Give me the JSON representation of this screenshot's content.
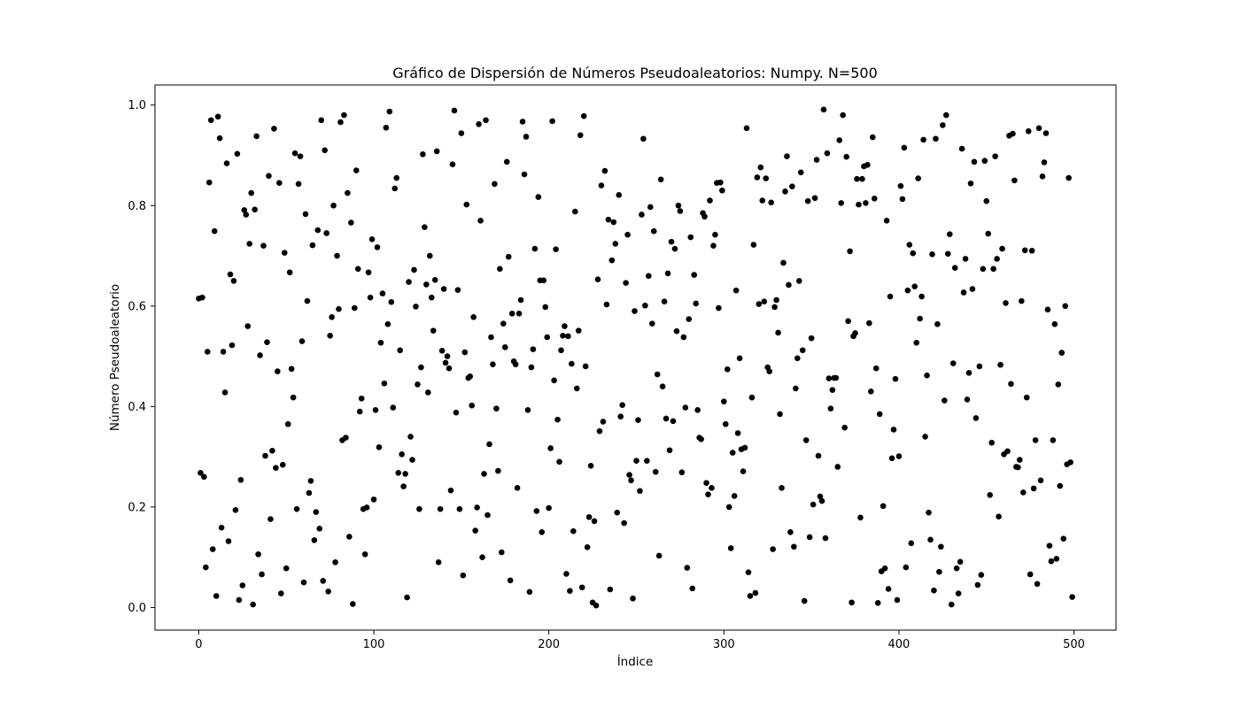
{
  "chart_data": {
    "type": "scatter",
    "title": "Gráfico de Dispersión de Números Pseudoaleatorios: Numpy. N=500",
    "xlabel": "Índice",
    "ylabel": "Número Pseudoaleatorio",
    "xlim": [
      -25,
      524
    ],
    "ylim": [
      -0.045,
      1.04
    ],
    "xticks": [
      0,
      100,
      200,
      300,
      400,
      500
    ],
    "yticks": [
      0.0,
      0.2,
      0.4,
      0.6,
      0.8,
      1.0
    ],
    "xtick_labels": [
      "0",
      "100",
      "200",
      "300",
      "400",
      "500"
    ],
    "ytick_labels": [
      "0.0",
      "0.2",
      "0.4",
      "0.6",
      "0.8",
      "1.0"
    ],
    "grid": false,
    "marker_color": "#000000",
    "series": [
      {
        "values": [
          0.615,
          0.268,
          0.617,
          0.26,
          0.08,
          0.509,
          0.846,
          0.97,
          0.116,
          0.749,
          0.023,
          0.977,
          0.934,
          0.159,
          0.509,
          0.428,
          0.884,
          0.132,
          0.663,
          0.522,
          0.65,
          0.194,
          0.903,
          0.015,
          0.254,
          0.044,
          0.791,
          0.782,
          0.56,
          0.724,
          0.825,
          0.006,
          0.792,
          0.938,
          0.106,
          0.502,
          0.066,
          0.72,
          0.302,
          0.528,
          0.859,
          0.176,
          0.312,
          0.953,
          0.278,
          0.47,
          0.845,
          0.028,
          0.284,
          0.706,
          0.078,
          0.365,
          0.667,
          0.475,
          0.418,
          0.904,
          0.196,
          0.843,
          0.898,
          0.53,
          0.05,
          0.783,
          0.61,
          0.228,
          0.252,
          0.721,
          0.134,
          0.19,
          0.751,
          0.157,
          0.97,
          0.053,
          0.91,
          0.745,
          0.032,
          0.541,
          0.578,
          0.8,
          0.09,
          0.7,
          0.594,
          0.966,
          0.333,
          0.98,
          0.338,
          0.825,
          0.141,
          0.766,
          0.007,
          0.596,
          0.87,
          0.674,
          0.39,
          0.416,
          0.196,
          0.106,
          0.199,
          0.667,
          0.617,
          0.733,
          0.215,
          0.393,
          0.717,
          0.319,
          0.527,
          0.625,
          0.446,
          0.955,
          0.564,
          0.987,
          0.608,
          0.398,
          0.834,
          0.855,
          0.268,
          0.512,
          0.305,
          0.241,
          0.266,
          0.02,
          0.648,
          0.34,
          0.294,
          0.672,
          0.599,
          0.444,
          0.196,
          0.478,
          0.902,
          0.757,
          0.643,
          0.428,
          0.7,
          0.617,
          0.551,
          0.652,
          0.908,
          0.09,
          0.196,
          0.511,
          0.634,
          0.487,
          0.5,
          0.476,
          0.233,
          0.882,
          0.989,
          0.388,
          0.632,
          0.196,
          0.944,
          0.064,
          0.508,
          0.802,
          0.457,
          0.46,
          0.402,
          0.578,
          0.153,
          0.199,
          0.962,
          0.77,
          0.1,
          0.266,
          0.97,
          0.184,
          0.325,
          0.538,
          0.484,
          0.843,
          0.396,
          0.272,
          0.674,
          0.11,
          0.565,
          0.518,
          0.887,
          0.698,
          0.054,
          0.585,
          0.49,
          0.484,
          0.238,
          0.585,
          0.612,
          0.967,
          0.862,
          0.937,
          0.393,
          0.031,
          0.478,
          0.514,
          0.714,
          0.192,
          0.817,
          0.651,
          0.15,
          0.651,
          0.598,
          0.538,
          0.198,
          0.317,
          0.968,
          0.452,
          0.713,
          0.374,
          0.29,
          0.512,
          0.541,
          0.56,
          0.067,
          0.54,
          0.033,
          0.485,
          0.152,
          0.788,
          0.436,
          0.551,
          0.94,
          0.04,
          0.978,
          0.48,
          0.12,
          0.18,
          0.282,
          0.01,
          0.172,
          0.004,
          0.653,
          0.351,
          0.84,
          0.37,
          0.869,
          0.603,
          0.772,
          0.036,
          0.691,
          0.767,
          0.724,
          0.189,
          0.821,
          0.38,
          0.403,
          0.168,
          0.646,
          0.742,
          0.264,
          0.253,
          0.018,
          0.59,
          0.292,
          0.373,
          0.232,
          0.782,
          0.933,
          0.601,
          0.292,
          0.66,
          0.797,
          0.565,
          0.749,
          0.27,
          0.464,
          0.103,
          0.852,
          0.44,
          0.609,
          0.376,
          0.665,
          0.313,
          0.728,
          0.371,
          0.714,
          0.55,
          0.8,
          0.789,
          0.269,
          0.538,
          0.398,
          0.079,
          0.574,
          0.737,
          0.038,
          0.662,
          0.605,
          0.393,
          0.338,
          0.335,
          0.785,
          0.778,
          0.248,
          0.225,
          0.81,
          0.238,
          0.72,
          0.742,
          0.845,
          0.596,
          0.846,
          0.83,
          0.41,
          0.365,
          0.474,
          0.2,
          0.118,
          0.308,
          0.222,
          0.631,
          0.347,
          0.496,
          0.315,
          0.271,
          0.318,
          0.954,
          0.07,
          0.023,
          0.418,
          0.722,
          0.029,
          0.856,
          0.604,
          0.876,
          0.81,
          0.609,
          0.854,
          0.478,
          0.47,
          0.806,
          0.116,
          0.598,
          0.612,
          0.547,
          0.385,
          0.238,
          0.686,
          0.828,
          0.898,
          0.642,
          0.15,
          0.838,
          0.121,
          0.436,
          0.496,
          0.65,
          0.866,
          0.512,
          0.013,
          0.333,
          0.809,
          0.14,
          0.536,
          0.205,
          0.815,
          0.891,
          0.302,
          0.221,
          0.212,
          0.991,
          0.138,
          0.904,
          0.456,
          0.396,
          0.433,
          0.457,
          0.457,
          0.28,
          0.93,
          0.805,
          0.98,
          0.358,
          0.897,
          0.57,
          0.709,
          0.01,
          0.54,
          0.546,
          0.853,
          0.802,
          0.179,
          0.853,
          0.878,
          0.805,
          0.881,
          0.566,
          0.43,
          0.936,
          0.814,
          0.476,
          0.009,
          0.385,
          0.072,
          0.202,
          0.078,
          0.77,
          0.037,
          0.619,
          0.297,
          0.354,
          0.455,
          0.015,
          0.301,
          0.839,
          0.813,
          0.915,
          0.08,
          0.631,
          0.722,
          0.128,
          0.705,
          0.639,
          0.527,
          0.854,
          0.575,
          0.619,
          0.931,
          0.34,
          0.462,
          0.189,
          0.135,
          0.703,
          0.034,
          0.933,
          0.564,
          0.071,
          0.121,
          0.96,
          0.412,
          0.98,
          0.704,
          0.743,
          0.006,
          0.486,
          0.676,
          0.078,
          0.028,
          0.091,
          0.913,
          0.627,
          0.694,
          0.414,
          0.467,
          0.844,
          0.634,
          0.887,
          0.377,
          0.045,
          0.48,
          0.065,
          0.674,
          0.889,
          0.809,
          0.744,
          0.224,
          0.328,
          0.674,
          0.898,
          0.694,
          0.181,
          0.483,
          0.714,
          0.305,
          0.606,
          0.311,
          0.939,
          0.445,
          0.943,
          0.85,
          0.28,
          0.279,
          0.294,
          0.61,
          0.229,
          0.711,
          0.418,
          0.948,
          0.066,
          0.71,
          0.237,
          0.333,
          0.047,
          0.954,
          0.253,
          0.858,
          0.886,
          0.944,
          0.593,
          0.123,
          0.092,
          0.333,
          0.564,
          0.097,
          0.444,
          0.242,
          0.507,
          0.137,
          0.6,
          0.285,
          0.855,
          0.289,
          0.021
        ]
      }
    ]
  }
}
